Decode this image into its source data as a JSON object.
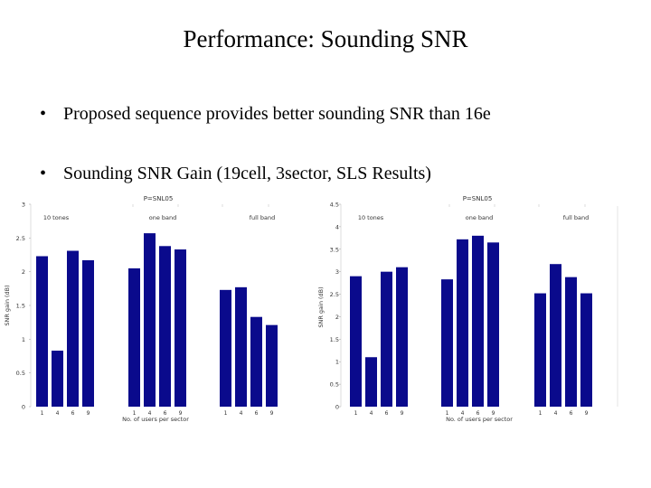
{
  "slide": {
    "title": "Performance: Sounding SNR",
    "bullets": [
      "Proposed sequence provides better sounding SNR than 16e",
      "Sounding SNR Gain (19cell, 3sector, SLS Results)"
    ],
    "bullet_symbol": "•"
  },
  "chart_data": [
    {
      "type": "bar",
      "title": "P=SNL05",
      "ylabel": "SNR gain (dB)",
      "xlabel": "No. of users per sector",
      "ylim": [
        0,
        3
      ],
      "yticks": [
        "0",
        "0.5",
        "1",
        "1.5",
        "2",
        "2.5",
        "3"
      ],
      "bar_color": "#0a0a8c",
      "groups": [
        {
          "name": "10 tones",
          "categories": [
            "1",
            "4",
            "6",
            "9"
          ],
          "values": [
            2.23,
            0.83,
            2.31,
            2.17
          ]
        },
        {
          "name": "one band",
          "categories": [
            "1",
            "4",
            "6",
            "9"
          ],
          "values": [
            2.05,
            2.57,
            2.38,
            2.33
          ]
        },
        {
          "name": "full band",
          "categories": [
            "1",
            "4",
            "6",
            "9"
          ],
          "values": [
            1.73,
            1.77,
            1.33,
            1.21
          ]
        }
      ]
    },
    {
      "type": "bar",
      "title": "P=SNL05",
      "ylabel": "SNR gain (dB)",
      "xlabel": "No. of users per sector",
      "ylim": [
        0,
        4.5
      ],
      "yticks": [
        "0",
        "0.5",
        "1",
        "1.5",
        "2",
        "2.5",
        "3",
        "3.5",
        "4",
        "4.5"
      ],
      "bar_color": "#0a0a8c",
      "groups": [
        {
          "name": "10 tones",
          "categories": [
            "1",
            "4",
            "6",
            "9"
          ],
          "values": [
            2.9,
            1.1,
            3.0,
            3.1
          ]
        },
        {
          "name": "one band",
          "categories": [
            "1",
            "4",
            "6",
            "9"
          ],
          "values": [
            2.83,
            3.72,
            3.8,
            3.65
          ]
        },
        {
          "name": "full band",
          "categories": [
            "1",
            "4",
            "6",
            "9"
          ],
          "values": [
            2.52,
            3.17,
            2.88,
            2.52
          ]
        }
      ]
    }
  ]
}
